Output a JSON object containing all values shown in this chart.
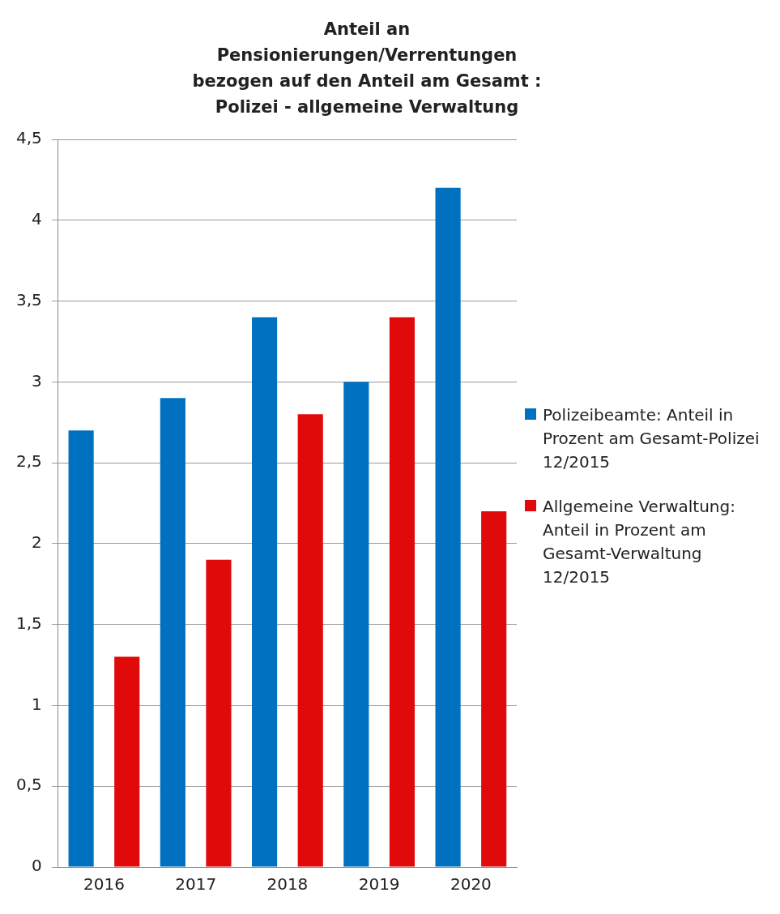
{
  "chart_data": {
    "type": "bar",
    "title": "Anteil an Pensionierungen/Verrentungen bezogen auf den Anteil am Gesamt : Polizei - allgemeine Verwaltung",
    "categories": [
      "2016",
      "2017",
      "2018",
      "2019",
      "2020"
    ],
    "series": [
      {
        "name": "Polizeibeamte: Anteil in Prozent am Gesamt-Polizei 12/2015",
        "color": "#0070c0",
        "values": [
          2.7,
          2.9,
          3.4,
          3.0,
          4.2
        ]
      },
      {
        "name": "Allgemeine Verwaltung: Anteil in Prozent am Gesamt-Verwaltung 12/2015",
        "color": "#e00a0a",
        "values": [
          1.3,
          1.9,
          2.8,
          3.4,
          2.2
        ]
      }
    ],
    "ylim": [
      0,
      4.5
    ],
    "yticks": [
      0,
      {
        "value": 0.5,
        "label": "0,5"
      },
      1,
      {
        "value": 1.5,
        "label": "1,5"
      },
      2,
      {
        "value": 2.5,
        "label": "2,5"
      },
      3,
      {
        "value": 3.5,
        "label": "3,5"
      },
      4,
      {
        "value": 4.5,
        "label": "4,5"
      }
    ],
    "grid": "y",
    "legend": "right"
  }
}
